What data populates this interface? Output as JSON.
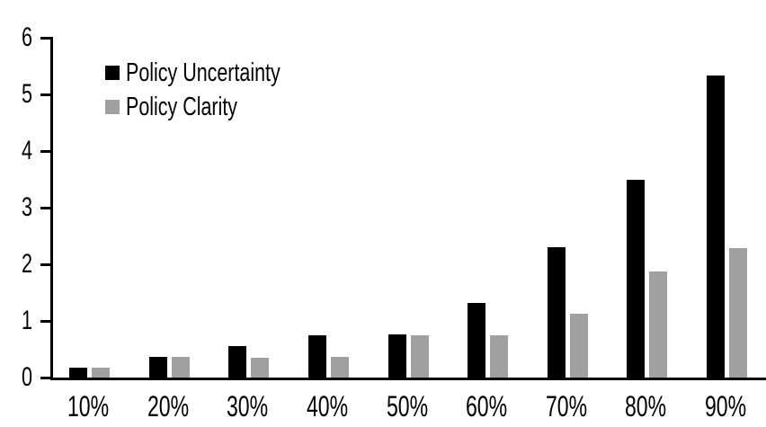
{
  "chart_data": {
    "type": "bar",
    "title": "",
    "xlabel": "",
    "ylabel": "",
    "categories": [
      "10%",
      "20%",
      "30%",
      "40%",
      "50%",
      "60%",
      "70%",
      "80%",
      "90%"
    ],
    "series": [
      {
        "name": "Policy Uncertainty",
        "color": "#000000",
        "values": [
          0.18,
          0.37,
          0.56,
          0.75,
          0.76,
          1.31,
          2.3,
          3.49,
          5.33
        ]
      },
      {
        "name": "Policy Clarity",
        "color": "#a0a0a0",
        "values": [
          0.18,
          0.36,
          0.35,
          0.36,
          0.75,
          0.74,
          1.13,
          1.87,
          2.29
        ]
      }
    ],
    "ylim": [
      0,
      6
    ],
    "yticks": [
      0,
      1,
      2,
      3,
      4,
      5,
      6
    ],
    "grid": false,
    "legend_position": "inside-top-left",
    "axis_color": "#000000",
    "background_color": "#ffffff"
  }
}
